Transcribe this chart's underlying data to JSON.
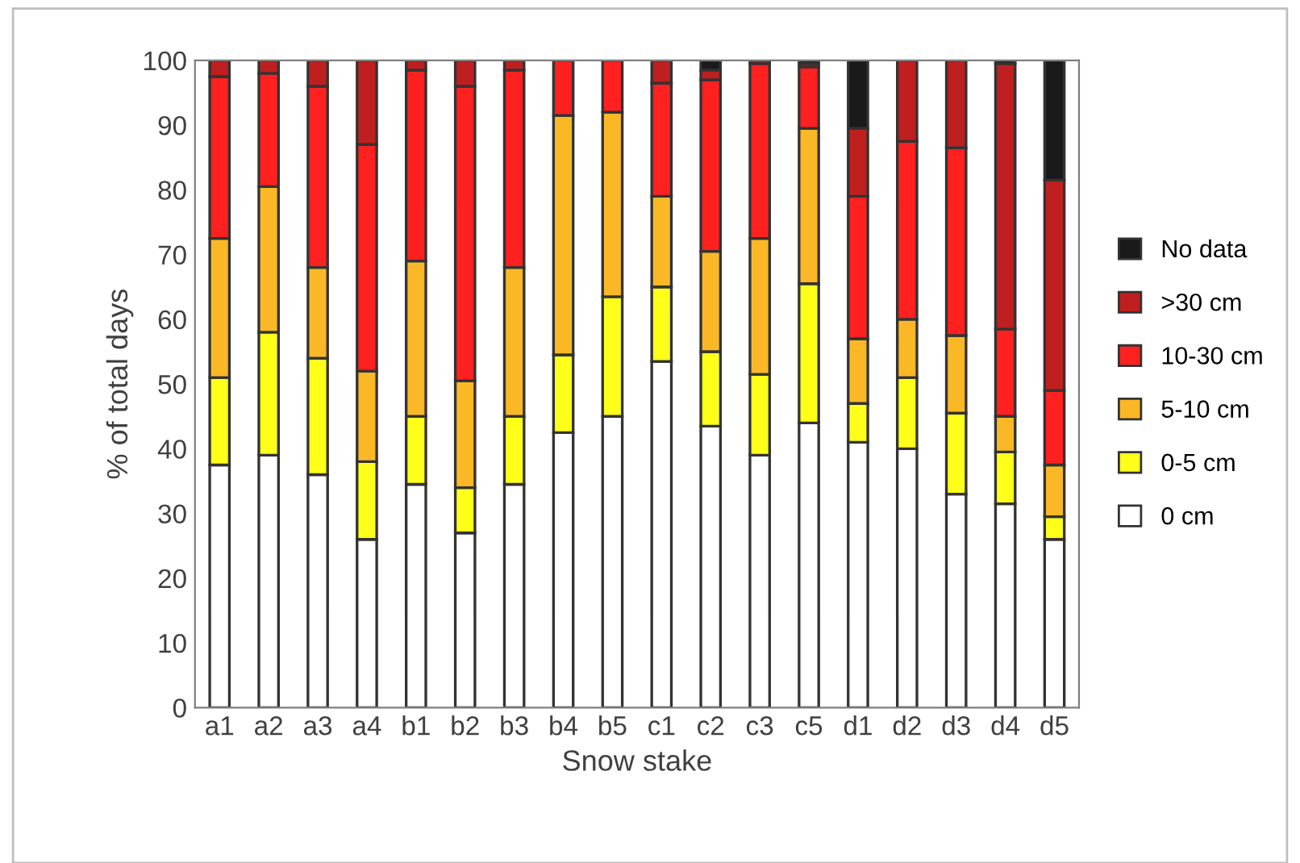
{
  "chart_data": {
    "type": "bar",
    "stacked": true,
    "xlabel": "Snow stake",
    "ylabel": "% of total days",
    "categories": [
      "a1",
      "a2",
      "a3",
      "a4",
      "b1",
      "b2",
      "b3",
      "b4",
      "b5",
      "c1",
      "c2",
      "c3",
      "c5",
      "d1",
      "d2",
      "d3",
      "d4",
      "d5"
    ],
    "series": [
      {
        "name": "0 cm",
        "color": "#ffffff",
        "values": [
          37.5,
          39,
          36,
          26,
          34.5,
          27,
          34.5,
          42.5,
          45,
          53.5,
          43.5,
          39,
          44,
          41,
          40,
          33,
          31.5,
          26
        ]
      },
      {
        "name": "0-5 cm",
        "color": "#ffff1a",
        "values": [
          13.5,
          19,
          18,
          12,
          10.5,
          7,
          10.5,
          12,
          18.5,
          11.5,
          11.5,
          12.5,
          21.5,
          6,
          11,
          12.5,
          8,
          3.5
        ]
      },
      {
        "name": "5-10 cm",
        "color": "#fbb826",
        "values": [
          21.5,
          22.5,
          14,
          14,
          24,
          16.5,
          23,
          37,
          28.5,
          14,
          15.5,
          21,
          24,
          10,
          9,
          12,
          5.5,
          8
        ]
      },
      {
        "name": "10-30 cm",
        "color": "#ff2020",
        "values": [
          25,
          17.5,
          28,
          35,
          29.5,
          45.5,
          30.5,
          8.5,
          8,
          17.5,
          26.5,
          27,
          9.5,
          22,
          27.5,
          29,
          13.5,
          11.5
        ]
      },
      {
        "name": ">30 cm",
        "color": "#c01f1f",
        "values": [
          2.5,
          2,
          4,
          13,
          1.5,
          4,
          1.5,
          null,
          null,
          3.5,
          1.5,
          0.5,
          0.5,
          10.5,
          12.5,
          13.5,
          41,
          32.5
        ]
      },
      {
        "name": "No data",
        "color": "#1a1a1a",
        "values": [
          null,
          null,
          null,
          null,
          null,
          null,
          null,
          null,
          null,
          null,
          1.5,
          null,
          0.5,
          10.5,
          null,
          null,
          0.5,
          18.5
        ]
      }
    ],
    "ylim": [
      0,
      100
    ],
    "yticks": [
      0,
      10,
      20,
      30,
      40,
      50,
      60,
      70,
      80,
      90,
      100
    ],
    "grid": false,
    "legend": "right"
  }
}
